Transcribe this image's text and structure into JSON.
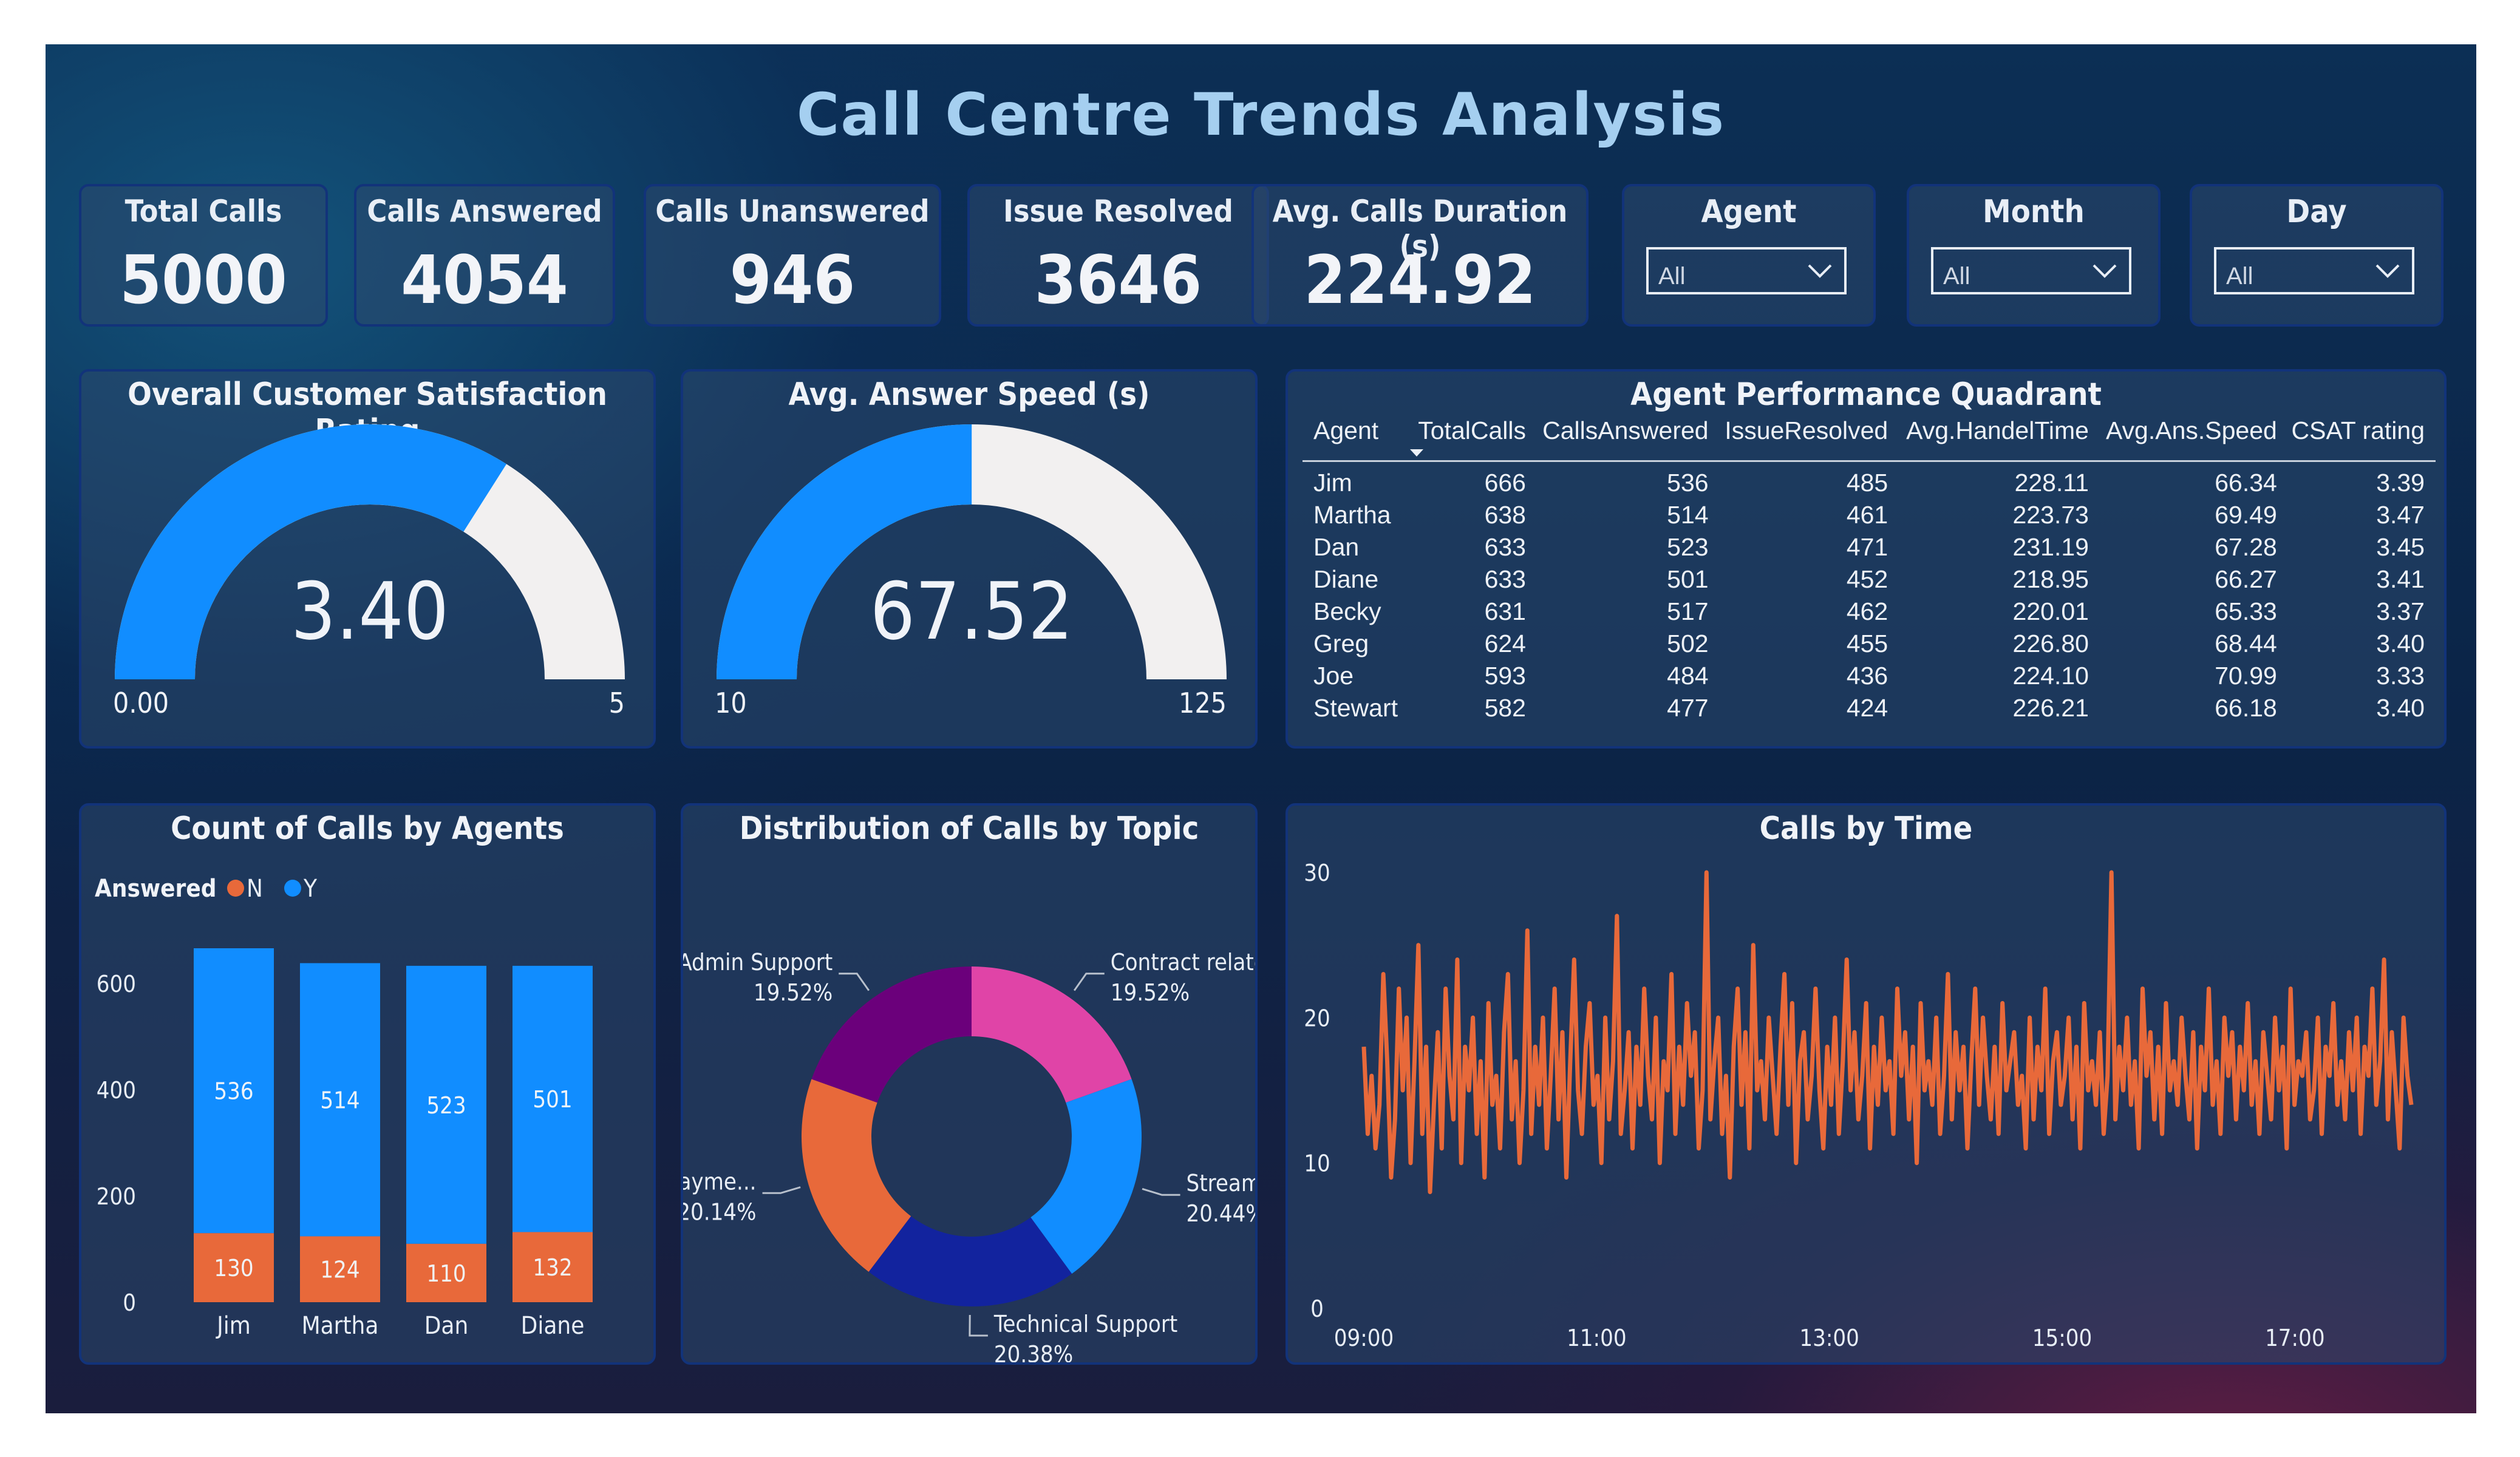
{
  "title": "Call Centre Trends Analysis",
  "colors": {
    "primary_blue": "#118dff",
    "orange": "#e8693a",
    "light_track": "#f2f0f0",
    "navy": "#12239e",
    "magenta": "#e044a7",
    "purple": "#6b007b",
    "card_border": "#12337a"
  },
  "kpis": [
    {
      "label": "Total Calls",
      "value": "5000"
    },
    {
      "label": "Calls Answered",
      "value": "4054"
    },
    {
      "label": "Calls Unanswered",
      "value": "946"
    },
    {
      "label": "Issue Resolved",
      "value": "3646"
    },
    {
      "label": "Avg. Calls Duration (s)",
      "value": "224.92"
    }
  ],
  "slicers": [
    {
      "label": "Agent",
      "value": "All",
      "icon": "chevron-down-icon"
    },
    {
      "label": "Month",
      "value": "All",
      "icon": "chevron-down-icon"
    },
    {
      "label": "Day",
      "value": "All",
      "icon": "chevron-down-icon"
    }
  ],
  "satisfaction_gauge": {
    "title": "Overall Customer Satisfaction Rating",
    "value": 3.4,
    "value_label": "3.40",
    "min": 0,
    "max": 5,
    "min_label": "0.00",
    "max_label": "5"
  },
  "speed_gauge": {
    "title": "Avg. Answer Speed (s)",
    "value": 67.52,
    "value_label": "67.52",
    "min": 10,
    "max": 125,
    "min_label": "10",
    "max_label": "125"
  },
  "agent_table": {
    "title": "Agent Performance Quadrant",
    "sort_icon": "sort-descending-icon",
    "columns": [
      "Agent",
      "TotalCalls",
      "CallsAnswered",
      "IssueResolved",
      "Avg.HandelTime",
      "Avg.Ans.Speed",
      "CSAT rating"
    ],
    "rows": [
      [
        "Jim",
        "666",
        "536",
        "485",
        "228.11",
        "66.34",
        "3.39"
      ],
      [
        "Martha",
        "638",
        "514",
        "461",
        "223.73",
        "69.49",
        "3.47"
      ],
      [
        "Dan",
        "633",
        "523",
        "471",
        "231.19",
        "67.28",
        "3.45"
      ],
      [
        "Diane",
        "633",
        "501",
        "452",
        "218.95",
        "66.27",
        "3.41"
      ],
      [
        "Becky",
        "631",
        "517",
        "462",
        "220.01",
        "65.33",
        "3.37"
      ],
      [
        "Greg",
        "624",
        "502",
        "455",
        "226.80",
        "68.44",
        "3.40"
      ],
      [
        "Joe",
        "593",
        "484",
        "436",
        "224.10",
        "70.99",
        "3.33"
      ],
      [
        "Stewart",
        "582",
        "477",
        "424",
        "226.21",
        "66.18",
        "3.40"
      ]
    ]
  },
  "chart_data": [
    {
      "type": "bar",
      "stacked": true,
      "title": "Count of Calls by Agents",
      "legend_title": "Answered",
      "categories": [
        "Jim",
        "Martha",
        "Dan",
        "Diane"
      ],
      "series": [
        {
          "name": "N",
          "values": [
            130,
            124,
            110,
            132
          ],
          "color": "#e8693a"
        },
        {
          "name": "Y",
          "values": [
            536,
            514,
            523,
            501
          ],
          "color": "#118dff"
        }
      ],
      "yticks": [
        "0",
        "200",
        "400",
        "600"
      ],
      "ylim": [
        0,
        666
      ]
    },
    {
      "type": "pie",
      "donut": true,
      "title": "Distribution of Calls by Topic",
      "slices": [
        {
          "label": "Contract related",
          "display": "Contract related",
          "percent_label": "19.52%",
          "value": 19.52,
          "color": "#e044a7"
        },
        {
          "label": "Streaming",
          "display": "Stream...",
          "percent_label": "20.44%",
          "value": 20.44,
          "color": "#118dff"
        },
        {
          "label": "Technical Support",
          "display": "Technical Support",
          "percent_label": "20.38%",
          "value": 20.38,
          "color": "#12239e"
        },
        {
          "label": "Payment related",
          "display": "Payme...",
          "percent_label": "20.14%",
          "value": 20.14,
          "color": "#e8693a"
        },
        {
          "label": "Admin Support",
          "display": "Admin Support",
          "percent_label": "19.52%",
          "value": 19.52,
          "color": "#6b007b"
        }
      ]
    },
    {
      "type": "line",
      "title": "Calls by Time",
      "xlabels": [
        "09:00",
        "11:00",
        "13:00",
        "15:00",
        "17:00"
      ],
      "yticks": [
        "0",
        "10",
        "20",
        "30"
      ],
      "ylim": [
        0,
        30
      ],
      "x_start": "09:00",
      "x_end": "18:00",
      "color": "#e8693a",
      "values": [
        18,
        12,
        16,
        11,
        14,
        23,
        17,
        9,
        13,
        22,
        15,
        20,
        10,
        17,
        25,
        12,
        18,
        8,
        14,
        19,
        11,
        22,
        16,
        13,
        24,
        10,
        18,
        15,
        20,
        12,
        17,
        9,
        21,
        14,
        16,
        11,
        19,
        23,
        13,
        17,
        10,
        15,
        26,
        12,
        18,
        14,
        20,
        11,
        16,
        22,
        13,
        19,
        9,
        17,
        24,
        15,
        12,
        18,
        21,
        14,
        16,
        10,
        20,
        13,
        17,
        27,
        12,
        15,
        19,
        11,
        18,
        14,
        22,
        16,
        13,
        20,
        10,
        17,
        15,
        23,
        12,
        18,
        14,
        21,
        16,
        19,
        11,
        15,
        30,
        13,
        17,
        20,
        12,
        16,
        9,
        18,
        22,
        14,
        19,
        11,
        25,
        15,
        17,
        13,
        20,
        16,
        12,
        18,
        23,
        14,
        21,
        10,
        17,
        19,
        13,
        16,
        22,
        15,
        11,
        18,
        14,
        20,
        12,
        17,
        24,
        15,
        19,
        13,
        16,
        21,
        11,
        18,
        14,
        20,
        15,
        17,
        12,
        22,
        16,
        19,
        13,
        18,
        10,
        21,
        15,
        17,
        14,
        20,
        12,
        16,
        23,
        13,
        19,
        15,
        18,
        11,
        17,
        22,
        14,
        20,
        16,
        13,
        18,
        12,
        21,
        15,
        17,
        19,
        14,
        16,
        11,
        20,
        13,
        18,
        15,
        22,
        12,
        17,
        19,
        14,
        16,
        20,
        13,
        18,
        11,
        21,
        15,
        17,
        14,
        19,
        12,
        16,
        30,
        13,
        18,
        15,
        20,
        14,
        17,
        11,
        22,
        16,
        19,
        13,
        18,
        12,
        21,
        15,
        17,
        14,
        20,
        16,
        13,
        19,
        11,
        18,
        15,
        22,
        14,
        17,
        12,
        20,
        16,
        19,
        13,
        18,
        15,
        21,
        14,
        17,
        12,
        19,
        16,
        13,
        20,
        15,
        18,
        11,
        22,
        14,
        17,
        16,
        19,
        13,
        15,
        20,
        12,
        18,
        16,
        21,
        14,
        17,
        13,
        19,
        15,
        20,
        12,
        18,
        16,
        22,
        14,
        17,
        24,
        13,
        19,
        15,
        11,
        20,
        16,
        14
      ]
    }
  ]
}
